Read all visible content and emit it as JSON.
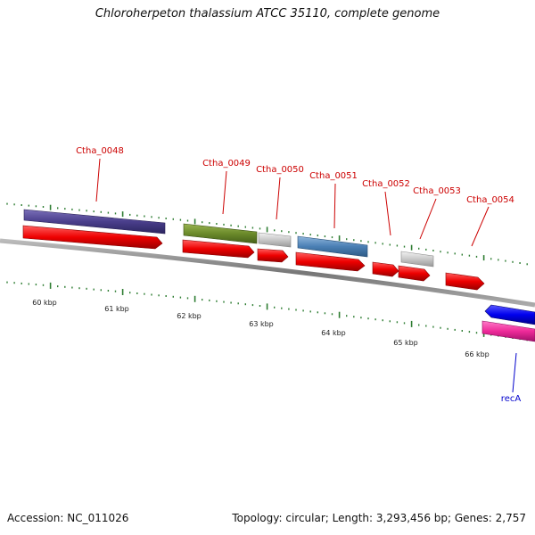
{
  "title": "Chloroherpeton thalassium ATCC 35110, complete genome",
  "accession": "Accession: NC_011026",
  "topology": "Topology: circular; Length: 3,293,456 bp; Genes: 2,757",
  "colors": {
    "gene_label": "#cc0000",
    "gene_label_blue": "#0000cc",
    "tick": "#2e7d32",
    "backbone": "#808080"
  },
  "kbp_labels": [
    "60 kbp",
    "61 kbp",
    "62 kbp",
    "63 kbp",
    "64 kbp",
    "65 kbp",
    "66 kbp"
  ],
  "genes": [
    {
      "name": "Ctha_0048",
      "color": "#cc0000"
    },
    {
      "name": "Ctha_0049",
      "color": "#cc0000"
    },
    {
      "name": "Ctha_0050",
      "color": "#cc0000"
    },
    {
      "name": "Ctha_0051",
      "color": "#cc0000"
    },
    {
      "name": "Ctha_0052",
      "color": "#cc0000"
    },
    {
      "name": "Ctha_0053",
      "color": "#cc0000"
    },
    {
      "name": "Ctha_0054",
      "color": "#cc0000"
    },
    {
      "name": "recA",
      "color": "#0000cc"
    }
  ]
}
